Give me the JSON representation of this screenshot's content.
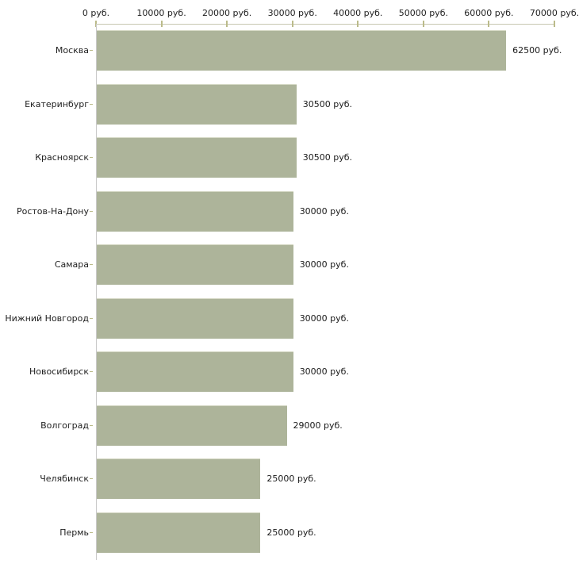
{
  "chart_data": {
    "type": "bar",
    "orientation": "horizontal",
    "title": "",
    "xlabel": "",
    "ylabel": "",
    "unit": "руб.",
    "categories": [
      "Москва",
      "Екатеринбург",
      "Красноярск",
      "Ростов-На-Дону",
      "Самара",
      "Нижний Новгород",
      "Новосибирск",
      "Волгоград",
      "Челябинск",
      "Пермь"
    ],
    "values": [
      62500,
      30500,
      30500,
      30000,
      30000,
      30000,
      30000,
      29000,
      25000,
      25000
    ],
    "value_labels": [
      "62500 руб.",
      "30500 руб.",
      "30500 руб.",
      "30000 руб.",
      "30000 руб.",
      "30000 руб.",
      "30000 руб.",
      "29000 руб.",
      "25000 руб.",
      "25000 руб."
    ],
    "x_ticks": [
      0,
      10000,
      20000,
      30000,
      40000,
      50000,
      60000,
      70000
    ],
    "x_tick_labels": [
      "0 руб.",
      "10000 руб.",
      "20000 руб.",
      "30000 руб.",
      "40000 руб.",
      "50000 руб.",
      "60000 руб.",
      "70000 руб."
    ],
    "xlim": [
      0,
      70000
    ],
    "grid": false,
    "legend_position": "none",
    "bar_color": "#adb49a",
    "axis_line_color": "#c6c6b0",
    "yaxis_line_color": "#c9c9c9",
    "tick_mark_color": "#bbbb8a",
    "background_color": "#ffffff"
  }
}
